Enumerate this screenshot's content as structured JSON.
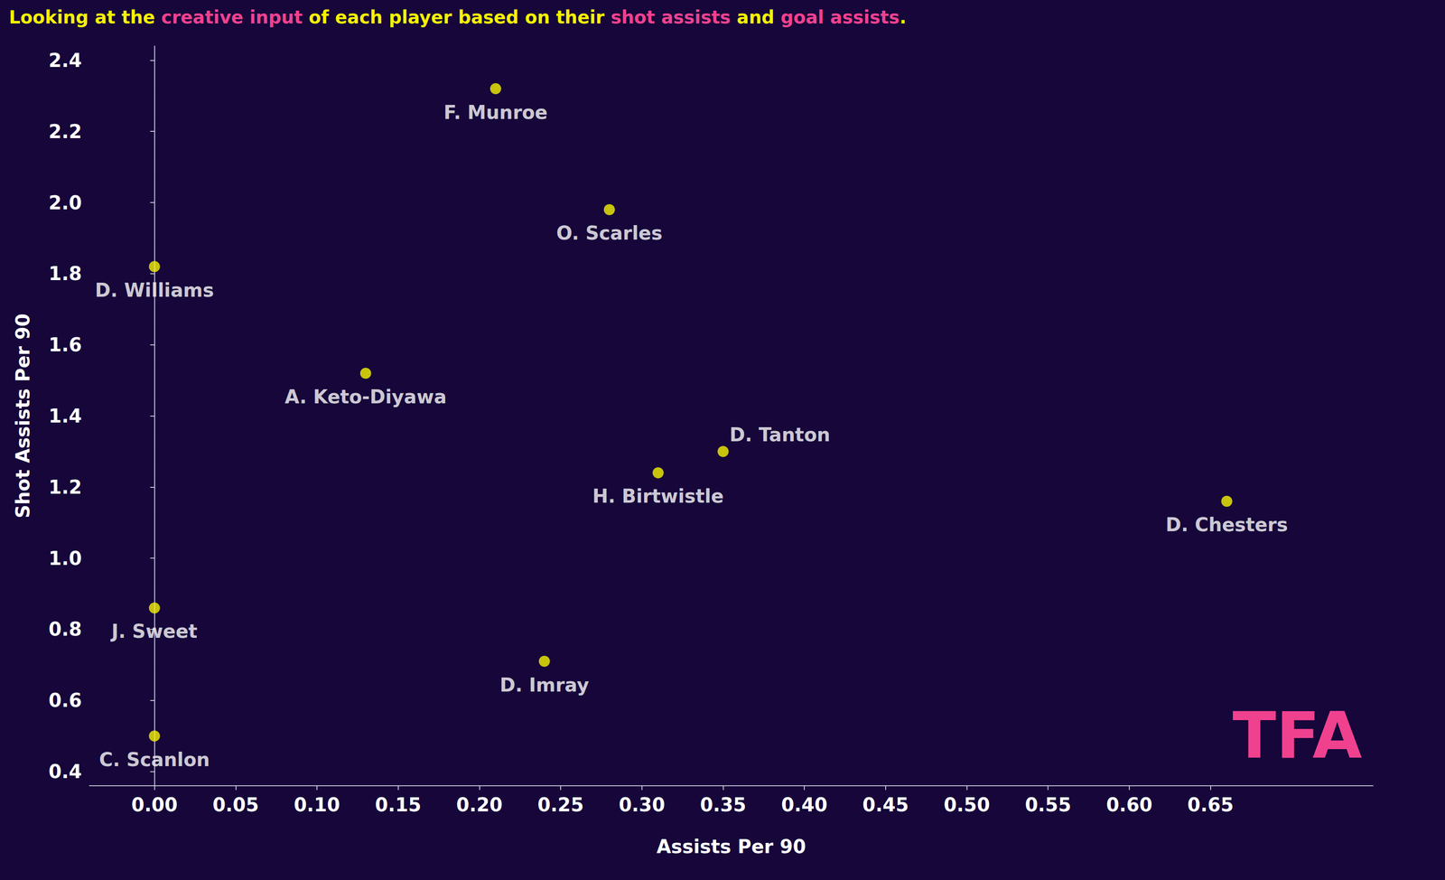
{
  "chart_data": {
    "type": "scatter",
    "title": "Looking at the creative input of each player based on their shot assists and goal assists.",
    "title_highlights": [
      "creative input",
      "shot assists",
      "goal assists"
    ],
    "x_label": "Assists Per 90",
    "y_label": "Shot Assists Per 90",
    "labels": [
      "F. Munroe",
      "O. Scarles",
      "D. Williams",
      "A. Keto-Diyawa",
      "D. Tanton",
      "H. Birtwistle",
      "D. Chesters",
      "J. Sweet",
      "D. Imray",
      "C. Scanlon"
    ],
    "x": [
      0.21,
      0.28,
      0,
      0.13,
      0.35,
      0.31,
      0.66,
      0,
      0.24,
      0
    ],
    "values": [
      2.32,
      1.98,
      1.82,
      1.52,
      1.3,
      1.24,
      1.16,
      0.86,
      0.71,
      0.5
    ],
    "color": "#f5f200",
    "marker": "circle",
    "xlim": [
      -0.04,
      0.75
    ],
    "xticks": [
      {
        "value": 0,
        "label": "0.00"
      },
      0.05,
      {
        "value": 0.1,
        "label": "0.10"
      },
      0.15,
      {
        "value": 0.2,
        "label": "0.20"
      },
      0.25,
      {
        "value": 0.3,
        "label": "0.30"
      },
      0.35,
      {
        "value": 0.4,
        "label": "0.40"
      },
      0.45,
      {
        "value": 0.5,
        "label": "0.50"
      },
      0.55,
      {
        "value": 0.6,
        "label": "0.60"
      },
      0.65
    ],
    "ylim": [
      0.36,
      2.44
    ],
    "yticks": [
      0.4,
      0.6,
      0.8,
      {
        "value": 1,
        "label": "1.0"
      },
      1.2,
      1.4,
      1.6,
      1.8,
      {
        "value": 2,
        "label": "2.0"
      },
      2.2,
      2.4
    ],
    "vline": 0,
    "watermark": "TFA",
    "grid": false
  }
}
